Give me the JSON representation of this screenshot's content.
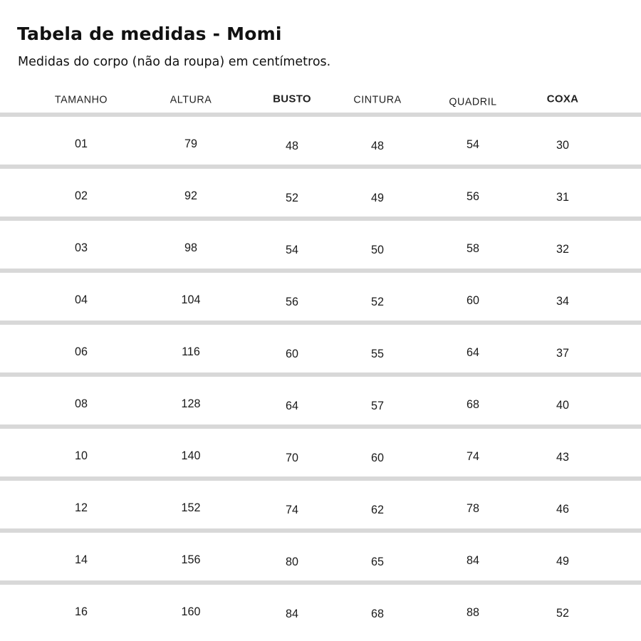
{
  "page": {
    "title": "Tabela de medidas - Momi",
    "subtitle": "Medidas do corpo (não da roupa) em centímetros."
  },
  "chart_data": {
    "type": "table",
    "title": "Tabela de medidas - Momi",
    "subtitle": "Medidas do corpo (não da roupa) em centímetros.",
    "unit": "cm",
    "columns": [
      "TAMANHO",
      "ALTURA",
      "BUSTO",
      "CINTURA",
      "QUADRIL",
      "COXA"
    ],
    "rows": [
      [
        "01",
        79,
        48,
        48,
        54,
        30
      ],
      [
        "02",
        92,
        52,
        49,
        56,
        31
      ],
      [
        "03",
        98,
        54,
        50,
        58,
        32
      ],
      [
        "04",
        104,
        56,
        52,
        60,
        34
      ],
      [
        "06",
        116,
        60,
        55,
        64,
        37
      ],
      [
        "08",
        128,
        64,
        57,
        68,
        40
      ],
      [
        "10",
        140,
        70,
        60,
        74,
        43
      ],
      [
        "12",
        152,
        74,
        62,
        78,
        46
      ],
      [
        "14",
        156,
        80,
        65,
        84,
        49
      ],
      [
        "16",
        160,
        84,
        68,
        88,
        52
      ]
    ]
  },
  "colors": {
    "background": "#ffffff",
    "text": "#1a1a1a",
    "separator": "#d8d8d8"
  }
}
